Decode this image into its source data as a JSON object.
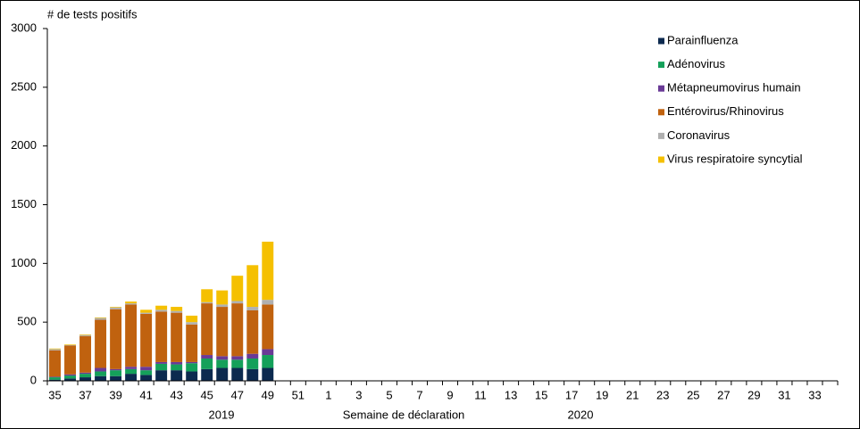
{
  "chart_data": {
    "type": "bar",
    "stacked": true,
    "ylabel": "# de tests positifs",
    "xlabel": "Semaine de déclaration",
    "year_labels": [
      "2019",
      "2020"
    ],
    "categories": [
      "35",
      null,
      "37",
      null,
      "39",
      null,
      "41",
      null,
      "43",
      null,
      "45",
      null,
      "47",
      null,
      "49",
      null,
      "51",
      null,
      "1",
      null,
      "3",
      null,
      "5",
      null,
      "7",
      null,
      "9",
      null,
      "11",
      null,
      "13",
      null,
      "15",
      null,
      "17",
      null,
      "19",
      null,
      "21",
      null,
      "23",
      null,
      "25",
      null,
      "27",
      null,
      "29",
      null,
      "31",
      null,
      "33",
      null
    ],
    "series": [
      {
        "name": "Parainfluenza",
        "color": "#0c2a4f",
        "values": [
          10,
          20,
          30,
          40,
          40,
          60,
          50,
          90,
          90,
          80,
          100,
          110,
          110,
          100,
          110,
          null,
          null,
          null,
          null,
          null,
          null,
          null,
          null,
          null,
          null,
          null,
          null,
          null,
          null,
          null,
          null,
          null,
          null,
          null,
          null,
          null,
          null,
          null,
          null,
          null,
          null,
          null,
          null,
          null,
          null,
          null,
          null,
          null,
          null,
          null,
          null,
          null
        ]
      },
      {
        "name": "Adénovirus",
        "color": "#14a05a",
        "values": [
          20,
          25,
          30,
          40,
          50,
          40,
          40,
          55,
          50,
          70,
          90,
          70,
          70,
          90,
          110,
          null,
          null,
          null,
          null,
          null,
          null,
          null,
          null,
          null,
          null,
          null,
          null,
          null,
          null,
          null,
          null,
          null,
          null,
          null,
          null,
          null,
          null,
          null,
          null,
          null,
          null,
          null,
          null,
          null,
          null,
          null,
          null,
          null,
          null,
          null,
          null,
          null
        ]
      },
      {
        "name": "Métapneumovirus humain",
        "color": "#6a3a96",
        "values": [
          5,
          10,
          10,
          30,
          10,
          20,
          30,
          15,
          20,
          10,
          30,
          30,
          30,
          40,
          50,
          null,
          null,
          null,
          null,
          null,
          null,
          null,
          null,
          null,
          null,
          null,
          null,
          null,
          null,
          null,
          null,
          null,
          null,
          null,
          null,
          null,
          null,
          null,
          null,
          null,
          null,
          null,
          null,
          null,
          null,
          null,
          null,
          null,
          null,
          null,
          null,
          null
        ]
      },
      {
        "name": "Entérovirus/Rhinovirus",
        "color": "#c0620f",
        "values": [
          225,
          245,
          310,
          410,
          510,
          530,
          450,
          430,
          420,
          320,
          440,
          420,
          450,
          370,
          380,
          null,
          null,
          null,
          null,
          null,
          null,
          null,
          null,
          null,
          null,
          null,
          null,
          null,
          null,
          null,
          null,
          null,
          null,
          null,
          null,
          null,
          null,
          null,
          null,
          null,
          null,
          null,
          null,
          null,
          null,
          null,
          null,
          null,
          null,
          null,
          null,
          null
        ]
      },
      {
        "name": "Coronavirus",
        "color": "#b0b0b0",
        "values": [
          10,
          5,
          10,
          15,
          15,
          10,
          10,
          15,
          15,
          20,
          10,
          20,
          20,
          30,
          40,
          null,
          null,
          null,
          null,
          null,
          null,
          null,
          null,
          null,
          null,
          null,
          null,
          null,
          null,
          null,
          null,
          null,
          null,
          null,
          null,
          null,
          null,
          null,
          null,
          null,
          null,
          null,
          null,
          null,
          null,
          null,
          null,
          null,
          null,
          null,
          null,
          null
        ]
      },
      {
        "name": "Virus respiratoire syncytial",
        "color": "#f5c000",
        "values": [
          5,
          5,
          5,
          5,
          5,
          15,
          25,
          35,
          35,
          55,
          110,
          120,
          215,
          355,
          495,
          null,
          null,
          null,
          null,
          null,
          null,
          null,
          null,
          null,
          null,
          null,
          null,
          null,
          null,
          null,
          null,
          null,
          null,
          null,
          null,
          null,
          null,
          null,
          null,
          null,
          null,
          null,
          null,
          null,
          null,
          null,
          null,
          null,
          null,
          null,
          null,
          null
        ]
      }
    ],
    "ylim": [
      0,
      3000
    ],
    "yticks": [
      0,
      500,
      1000,
      1500,
      2000,
      2500,
      3000
    ],
    "grid": false,
    "legend": "top-right"
  }
}
